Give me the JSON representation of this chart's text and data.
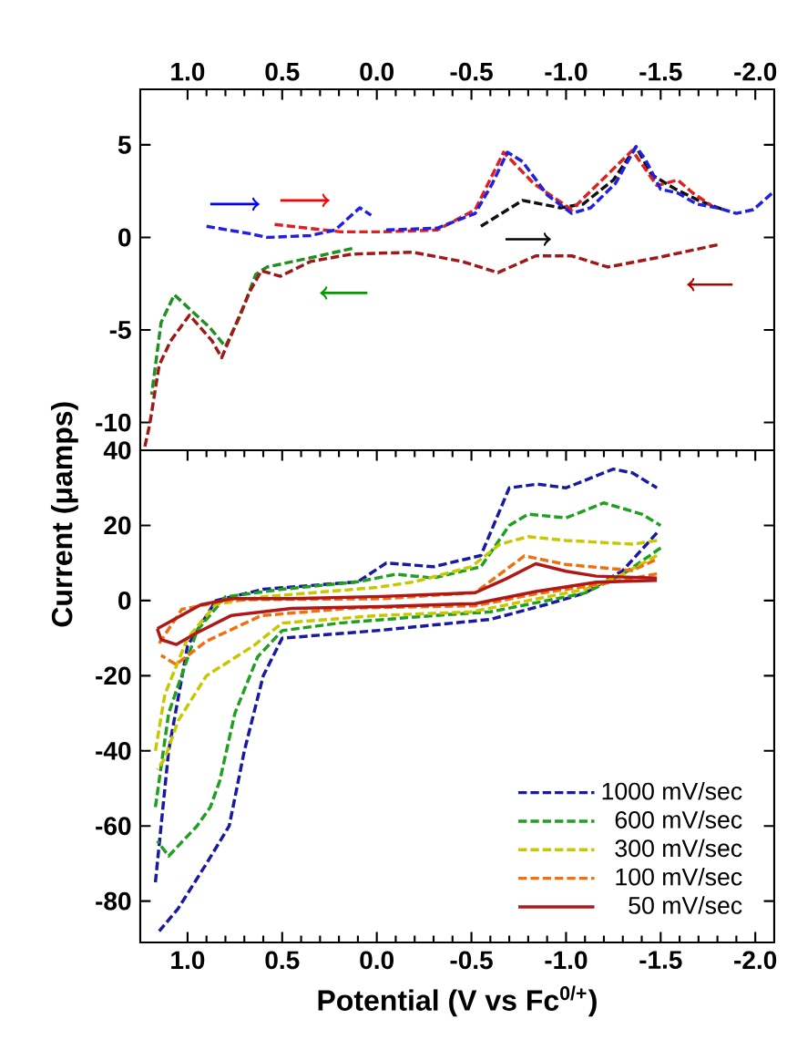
{
  "chart_data": [
    {
      "type": "line",
      "tick_labels": "y",
      "xlim": [
        1.25,
        -2.1
      ],
      "x2lim": [
        1.25,
        -2.1
      ],
      "x2ticks": [
        {
          "value": 1.0,
          "label": "1.0"
        },
        {
          "value": 0.5,
          "label": "0.5"
        },
        {
          "value": 0.0,
          "label": "0.0"
        },
        {
          "value": -0.5,
          "label": "-0.5"
        },
        {
          "value": -1.0,
          "label": "-1.0"
        },
        {
          "value": -1.5,
          "label": "-1.5"
        },
        {
          "value": -2.0,
          "label": "-2.0"
        }
      ],
      "ylim": [
        -11.5,
        8
      ],
      "yticks": [
        -10,
        -5,
        0,
        5
      ],
      "series": [
        {
          "color": "#2020e0",
          "line_style": "dashed",
          "x": [
            0.9,
            0.67,
            0.58,
            0.35,
            0.22,
            0.09,
            0.03,
            null,
            -0.05,
            -0.32,
            -0.52,
            -0.61,
            -0.69,
            -0.77,
            -0.9,
            -1.03,
            -1.13,
            -1.26,
            -1.37,
            -1.42,
            -1.5,
            -1.59,
            -1.69,
            -1.8,
            -1.9,
            -1.99,
            -2.09
          ],
          "values": [
            0.6,
            0.2,
            0.0,
            0.1,
            0.4,
            1.6,
            1.2,
            null,
            0.4,
            0.5,
            1.3,
            2.9,
            4.6,
            4.1,
            2.3,
            1.3,
            1.6,
            2.9,
            4.9,
            4.2,
            2.6,
            2.4,
            1.8,
            1.6,
            1.3,
            1.5,
            2.4
          ]
        },
        {
          "color": "#e02020",
          "line_style": "dashed",
          "x": [
            0.54,
            0.19,
            -0.03,
            -0.32,
            -0.52,
            -0.67,
            -0.83,
            -1.03,
            -1.35,
            -1.48,
            -1.59,
            -1.67,
            -1.8
          ],
          "values": [
            0.7,
            0.3,
            0.3,
            0.4,
            1.5,
            4.6,
            2.9,
            1.5,
            4.7,
            2.8,
            3.1,
            2.4,
            1.5
          ]
        },
        {
          "color": "#101010",
          "line_style": "dashed",
          "x": [
            -0.55,
            -0.77,
            -0.97,
            -1.09,
            -1.25,
            -1.37,
            -1.45,
            -1.58,
            -1.7,
            -1.83
          ],
          "values": [
            0.6,
            2.0,
            1.6,
            1.8,
            3.1,
            4.9,
            3.4,
            2.6,
            2.0,
            1.5
          ]
        },
        {
          "color": "#a01818",
          "line_style": "dashed",
          "x": [
            -1.8,
            -1.48,
            -1.22,
            -1.03,
            -0.84,
            -0.64,
            -0.45,
            -0.19,
            0.13,
            0.35,
            0.51,
            0.61,
            0.67,
            0.82,
            0.87,
            0.99,
            1.09,
            1.15,
            1.2,
            1.23
          ],
          "values": [
            -0.4,
            -1.1,
            -1.6,
            -1.0,
            -1.0,
            -1.9,
            -1.3,
            -0.8,
            -0.9,
            -1.3,
            -2.1,
            -1.8,
            -2.9,
            -6.5,
            -5.6,
            -4.2,
            -5.6,
            -6.9,
            -10.1,
            -11.5
          ]
        },
        {
          "color": "#209020",
          "line_style": "dashed",
          "x": [
            0.13,
            0.35,
            0.58,
            0.64,
            0.72,
            0.8,
            0.88,
            1.07,
            1.14,
            1.19
          ],
          "values": [
            -0.6,
            -1.1,
            -1.6,
            -2.0,
            -4.2,
            -5.9,
            -4.9,
            -3.1,
            -4.6,
            -8.5
          ]
        }
      ]
    },
    {
      "type": "line",
      "xlabel": "Potential (V vs Fc$^{0/+}$)",
      "ylabel": "Current (μamps)",
      "xlim": [
        1.25,
        -2.1
      ],
      "xticks": [
        {
          "value": 1.0,
          "label": "1.0"
        },
        {
          "value": 0.5,
          "label": "0.5"
        },
        {
          "value": 0.0,
          "label": "0.0"
        },
        {
          "value": -0.5,
          "label": "-0.5"
        },
        {
          "value": -1.0,
          "label": "-1.0"
        },
        {
          "value": -1.5,
          "label": "-1.5"
        },
        {
          "value": -2.0,
          "label": "-2.0"
        }
      ],
      "ylim": [
        -91,
        40
      ],
      "yticks": [
        -80,
        -60,
        -40,
        -20,
        0,
        20,
        40
      ],
      "legend": "bottom right",
      "series": [
        {
          "name": "50 mV/sec",
          "color": "#b01818",
          "line_style": "solid",
          "x": [
            1.16,
            0.93,
            0.77,
            0.45,
            -0.03,
            -0.52,
            -0.68,
            -0.84,
            -1.0,
            -1.16,
            -1.48
          ],
          "values": [
            -7.5,
            -1.1,
            0.5,
            0.5,
            1.1,
            2.1,
            5.7,
            9.8,
            7.8,
            6.5,
            6.0
          ]
        },
        {
          "color": "#b01818",
          "line_style": "solid",
          "x": [
            -1.48,
            -1.16,
            -0.84,
            -0.52,
            -0.03,
            0.45,
            0.77,
            0.96,
            1.06,
            1.14,
            1.16
          ],
          "values": [
            5.4,
            4.9,
            2.4,
            -0.8,
            -1.6,
            -2.1,
            -4.0,
            -8.8,
            -11.7,
            -10.4,
            -7.5
          ]
        },
        {
          "name": "100 mV/sec",
          "color": "#f07010",
          "line_style": "dashed",
          "x": [
            1.15,
            1.03,
            0.77,
            -0.03,
            -0.52,
            -0.78,
            -1.0,
            -1.35,
            -1.48
          ],
          "values": [
            -11.4,
            -2.3,
            0.2,
            0.5,
            2.1,
            11.9,
            9.6,
            8.0,
            11.0
          ]
        },
        {
          "color": "#f07010",
          "line_style": "dashed",
          "x": [
            -1.48,
            -1.16,
            -0.84,
            -0.52,
            0.13,
            0.61,
            0.9,
            1.06,
            1.14
          ],
          "values": [
            7.1,
            4.2,
            1.8,
            -1.4,
            -2.0,
            -4.0,
            -10.8,
            -17.0,
            -14.6
          ]
        },
        {
          "name": "300 mV/sec",
          "color": "#c8c800",
          "line_style": "dashed",
          "x": [
            1.17,
            1.12,
            1.0,
            0.85,
            0.6,
            0.0,
            -0.2,
            -0.5,
            -0.65,
            -0.8,
            -1.0,
            -1.35,
            -1.48
          ],
          "values": [
            -40,
            -25,
            -10,
            -1,
            1,
            3.5,
            5,
            9,
            15,
            17,
            16,
            15,
            16
          ]
        },
        {
          "color": "#c8c800",
          "line_style": "dashed",
          "x": [
            -1.48,
            -1.3,
            -1.1,
            -0.8,
            -0.5,
            0.0,
            0.5,
            0.65,
            0.9,
            1.05,
            1.12,
            1.16
          ],
          "values": [
            12,
            7,
            3,
            0,
            -3,
            -4,
            -6,
            -12,
            -20,
            -32,
            -42,
            -45
          ]
        },
        {
          "name": "600 mV/sec",
          "color": "#20a020",
          "line_style": "dashed",
          "x": [
            1.17,
            1.1,
            0.95,
            0.8,
            0.5,
            0.1,
            -0.1,
            -0.3,
            -0.55,
            -0.7,
            -0.8,
            -1.0,
            -1.2,
            -1.4,
            -1.5
          ],
          "values": [
            -55,
            -30,
            -8,
            1,
            3,
            5,
            7,
            6,
            9,
            20,
            23,
            22,
            26,
            23,
            20
          ]
        },
        {
          "color": "#20a020",
          "line_style": "dashed",
          "x": [
            -1.5,
            -1.3,
            -1.1,
            -0.9,
            -0.6,
            -0.3,
            0.2,
            0.5,
            0.63,
            0.75,
            0.83,
            0.88,
            0.95,
            1.1,
            1.16
          ],
          "values": [
            14,
            7,
            2,
            0,
            -3,
            -4,
            -6,
            -8,
            -15,
            -30,
            -48,
            -55,
            -60,
            -68,
            -64
          ]
        },
        {
          "name": "1000 mV/sec",
          "color": "#1a1aa0",
          "line_style": "dashed",
          "x": [
            1.17,
            1.1,
            1.0,
            0.85,
            0.6,
            0.1,
            -0.05,
            -0.3,
            -0.55,
            -0.7,
            -0.85,
            -1.0,
            -1.25,
            -1.35,
            -1.48
          ],
          "values": [
            -75,
            -40,
            -12,
            0,
            3,
            5,
            10,
            9,
            12,
            30,
            31,
            30,
            35,
            34,
            30
          ]
        },
        {
          "color": "#1a1aa0",
          "line_style": "dashed",
          "x": [
            -1.48,
            -1.3,
            -1.1,
            -0.9,
            -0.6,
            0.0,
            0.5,
            0.6,
            0.7,
            0.78,
            0.9,
            1.05,
            1.15
          ],
          "values": [
            18,
            8,
            2,
            -1,
            -5,
            -8,
            -10,
            -20,
            -40,
            -60,
            -70,
            -82,
            -88
          ]
        }
      ]
    }
  ]
}
